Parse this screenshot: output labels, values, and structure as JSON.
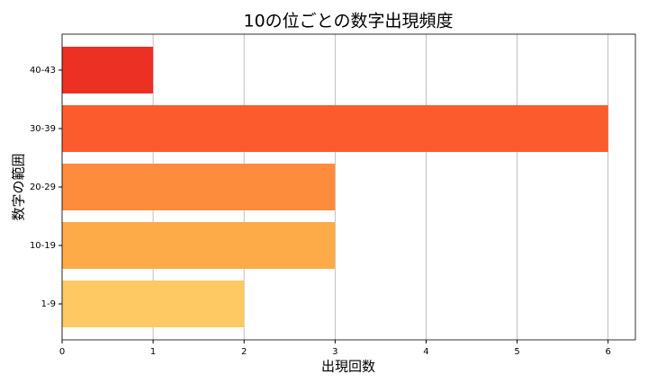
{
  "chart_data": {
    "type": "barh",
    "title": "10の位ごとの数字出現頻度",
    "x_label": "出現回数",
    "y_label": "数字の範囲",
    "categories": [
      "1-9",
      "10-19",
      "20-29",
      "30-39",
      "40-43"
    ],
    "values": [
      2,
      3,
      3,
      6,
      1
    ],
    "colors": [
      "#fec862",
      "#fdaa48",
      "#fd8d3c",
      "#fc5b2e",
      "#ec3023"
    ],
    "xlim": [
      0,
      6.3
    ],
    "xticks": [
      0,
      1,
      2,
      3,
      4,
      5,
      6
    ],
    "grid": true
  }
}
